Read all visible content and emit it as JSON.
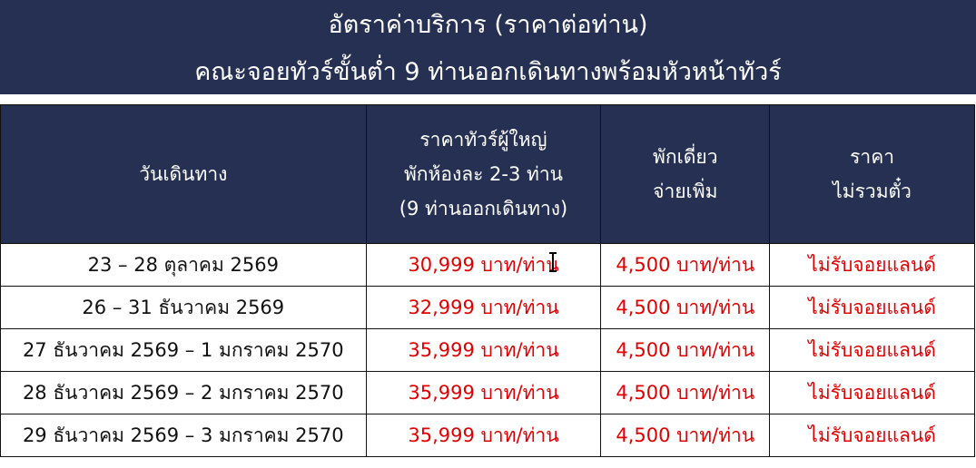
{
  "banner": {
    "title_line1": "อัตราค่าบริการ (ราคาต่อท่าน)",
    "title_line2": "คณะจอยทัวร์ขั้นต่ำ 9 ท่านออกเดินทางพร้อมหัวหน้าทัวร์",
    "background": "#253052"
  },
  "table": {
    "headers": {
      "date": "วันเดินทาง",
      "adult_price_1": "ราคาทัวร์ผู้ใหญ่",
      "adult_price_2": "พักห้องละ 2-3 ท่าน",
      "adult_price_3": "(9 ท่านออกเดินทาง)",
      "single_1": "พักเดี่ยว",
      "single_2": "จ่ายเพิ่ม",
      "ticket_1": "ราคา",
      "ticket_2": "ไม่รวมตั๋ว"
    },
    "rows": [
      {
        "date": "23 – 28 ตุลาคม 2569",
        "price": "30,999 บาท/ท่าน",
        "single": "4,500 บาท/ท่าน",
        "ticket": "ไม่รับจอยแลนด์"
      },
      {
        "date": "26 – 31 ธันวาคม 2569",
        "price": "32,999 บาท/ท่าน",
        "single": "4,500 บาท/ท่าน",
        "ticket": "ไม่รับจอยแลนด์"
      },
      {
        "date": "27 ธันวาคม 2569 – 1 มกราคม 2570",
        "price": "35,999 บาท/ท่าน",
        "single": "4,500 บาท/ท่าน",
        "ticket": "ไม่รับจอยแลนด์"
      },
      {
        "date": "28 ธันวาคม 2569 – 2 มกราคม 2570",
        "price": "35,999 บาท/ท่าน",
        "single": "4,500 บาท/ท่าน",
        "ticket": "ไม่รับจอยแลนด์"
      },
      {
        "date": "29 ธันวาคม 2569 – 3 มกราคม 2570",
        "price": "35,999 บาท/ท่าน",
        "single": "4,500 บาท/ท่าน",
        "ticket": "ไม่รับจอยแลนด์"
      }
    ],
    "price_color": "#e00000"
  }
}
